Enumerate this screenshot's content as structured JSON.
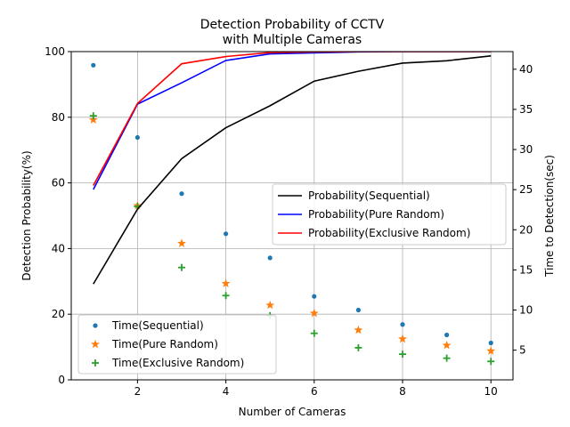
{
  "chart_data": {
    "type": "line",
    "title_lines": [
      "Detection Probability of CCTV",
      "with Multiple Cameras"
    ],
    "xlabel": "Number of Cameras",
    "ylabel_left": "Detection Probability(%)",
    "ylabel_right": "Time to Detection(sec)",
    "x": [
      1,
      2,
      3,
      4,
      5,
      6,
      7,
      8,
      9,
      10
    ],
    "xlim": [
      0.5,
      10.5
    ],
    "xticks": [
      "2",
      "4",
      "6",
      "8",
      "10"
    ],
    "ylim_left": [
      0,
      100
    ],
    "yticks_left": [
      "0",
      "20",
      "40",
      "60",
      "80",
      "100"
    ],
    "ylim_right": [
      1.3,
      42.2
    ],
    "yticks_right": [
      "5",
      "10",
      "15",
      "20",
      "25",
      "30",
      "35",
      "40"
    ],
    "grid": true,
    "series_left": [
      {
        "name": "Probability(Sequential)",
        "color": "#000000",
        "values": [
          29.2,
          52.0,
          67.4,
          76.8,
          83.5,
          91.0,
          94.0,
          96.5,
          97.2,
          98.7
        ]
      },
      {
        "name": "Probability(Pure Random)",
        "color": "#0000ff",
        "values": [
          58.0,
          84.0,
          90.5,
          97.3,
          99.3,
          99.6,
          99.9,
          100.0,
          100.0,
          100.0
        ]
      },
      {
        "name": "Probability(Exclusive Random)",
        "color": "#ff0000",
        "values": [
          59.2,
          84.2,
          96.3,
          98.5,
          99.7,
          99.9,
          100.0,
          100.0,
          100.0,
          100.0
        ]
      }
    ],
    "series_right": [
      {
        "name": "Time(Sequential)",
        "color": "#1f77b4",
        "marker": "dot",
        "values": [
          40.5,
          31.5,
          24.5,
          19.5,
          16.5,
          11.7,
          10.0,
          8.2,
          6.9,
          5.9
        ]
      },
      {
        "name": "Time(Pure Random)",
        "color": "#ff7f0e",
        "marker": "star",
        "values": [
          33.7,
          23.0,
          18.3,
          13.3,
          10.6,
          9.6,
          7.5,
          6.4,
          5.6,
          4.9
        ]
      },
      {
        "name": "Time(Exclusive Random)",
        "color": "#2ca02c",
        "marker": "plus",
        "values": [
          34.2,
          22.9,
          15.3,
          11.8,
          9.3,
          7.1,
          5.3,
          4.5,
          4.0,
          3.6
        ]
      }
    ],
    "legend_upper": {
      "placement": "center-right"
    },
    "legend_lower": {
      "placement": "lower-left"
    }
  }
}
